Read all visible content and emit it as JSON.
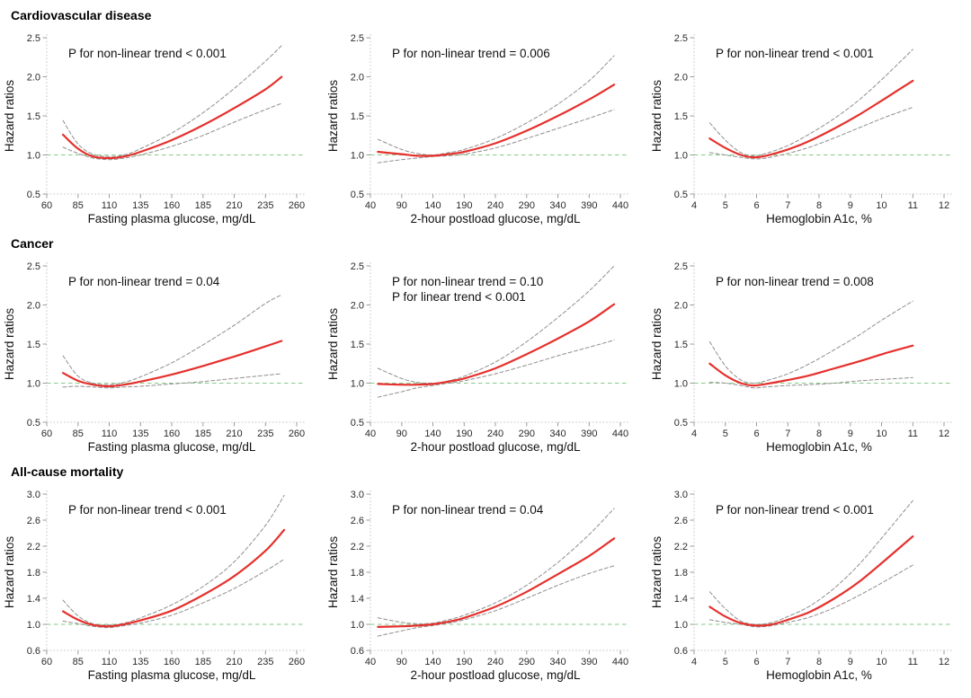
{
  "page": {
    "background": "#ffffff"
  },
  "colors": {
    "estimate_red": "#e5302c",
    "ci_gray": "#8e8e8e",
    "reference_green": "#86ca86",
    "axis_line": "#c6c6c6",
    "tick_mark": "#9b9b9b",
    "text": "#111111"
  },
  "rows": [
    {
      "title": "Cardiovascular disease"
    },
    {
      "title": "Cancer"
    },
    {
      "title": "All-cause mortality"
    }
  ],
  "chart_data": [
    {
      "type": "line",
      "outcome": "Cardiovascular disease",
      "xlabel": "Fasting plasma glucose, mg/dL",
      "ylabel": "Hazard ratios",
      "xlim": [
        60,
        260
      ],
      "xticks": [
        60,
        85,
        110,
        135,
        160,
        185,
        210,
        235,
        260
      ],
      "ylim": [
        0.5,
        2.5
      ],
      "yticks": [
        0.5,
        1.0,
        1.5,
        2.0,
        2.5
      ],
      "annotations": [
        "P for non-linear trend < 0.001"
      ],
      "reference_line_y": 1.0,
      "grid": false,
      "legend": "none",
      "x": [
        73,
        85,
        97,
        110,
        122,
        135,
        160,
        185,
        210,
        235,
        248
      ],
      "series": [
        {
          "name": "Hazard ratio",
          "role": "estimate",
          "color": "#e5302c",
          "style": "solid",
          "y": [
            1.26,
            1.08,
            0.98,
            0.96,
            0.98,
            1.04,
            1.19,
            1.38,
            1.6,
            1.84,
            2.0
          ]
        },
        {
          "name": "Upper 95% CI",
          "role": "ci",
          "color": "#8e8e8e",
          "style": "dashed",
          "y": [
            1.44,
            1.14,
            1.01,
            0.98,
            1.0,
            1.08,
            1.28,
            1.54,
            1.85,
            2.2,
            2.4
          ]
        },
        {
          "name": "Lower 95% CI",
          "role": "ci",
          "color": "#8e8e8e",
          "style": "dashed",
          "y": [
            1.1,
            1.02,
            0.96,
            0.94,
            0.96,
            1.0,
            1.11,
            1.25,
            1.42,
            1.58,
            1.66
          ]
        }
      ]
    },
    {
      "type": "line",
      "outcome": "Cardiovascular disease",
      "xlabel": "2-hour postload glucose, mg/dL",
      "ylabel": "Hazard ratios",
      "xlim": [
        40,
        440
      ],
      "xticks": [
        40,
        90,
        140,
        190,
        240,
        290,
        340,
        390,
        440
      ],
      "ylim": [
        0.5,
        2.5
      ],
      "yticks": [
        0.5,
        1.0,
        1.5,
        2.0,
        2.5
      ],
      "annotations": [
        "P for non-linear trend = 0.006"
      ],
      "reference_line_y": 1.0,
      "grid": false,
      "legend": "none",
      "x": [
        52,
        90,
        115,
        140,
        165,
        190,
        240,
        290,
        340,
        390,
        430
      ],
      "series": [
        {
          "name": "Hazard ratio",
          "role": "estimate",
          "color": "#e5302c",
          "style": "solid",
          "y": [
            1.04,
            1.01,
            0.99,
            0.99,
            1.01,
            1.04,
            1.15,
            1.31,
            1.5,
            1.71,
            1.9
          ]
        },
        {
          "name": "Upper 95% CI",
          "role": "ci",
          "color": "#8e8e8e",
          "style": "dashed",
          "y": [
            1.2,
            1.07,
            1.02,
            1.0,
            1.03,
            1.07,
            1.21,
            1.41,
            1.65,
            1.95,
            2.27
          ]
        },
        {
          "name": "Lower 95% CI",
          "role": "ci",
          "color": "#8e8e8e",
          "style": "dashed",
          "y": [
            0.9,
            0.94,
            0.96,
            0.98,
            0.99,
            1.01,
            1.09,
            1.21,
            1.34,
            1.47,
            1.58
          ]
        }
      ]
    },
    {
      "type": "line",
      "outcome": "Cardiovascular disease",
      "xlabel": "Hemoglobin A1c, %",
      "ylabel": "Hazard ratios",
      "xlim": [
        4,
        12
      ],
      "xticks": [
        4,
        5,
        6,
        7,
        8,
        9,
        10,
        11,
        12
      ],
      "ylim": [
        0.5,
        2.5
      ],
      "yticks": [
        0.5,
        1.0,
        1.5,
        2.0,
        2.5
      ],
      "annotations": [
        "P for non-linear trend < 0.001"
      ],
      "reference_line_y": 1.0,
      "grid": false,
      "legend": "none",
      "x": [
        4.5,
        5,
        5.5,
        5.9,
        6.3,
        7,
        7.7,
        8.5,
        9.3,
        10.1,
        11
      ],
      "series": [
        {
          "name": "Hazard ratio",
          "role": "estimate",
          "color": "#e5302c",
          "style": "solid",
          "y": [
            1.21,
            1.09,
            1.0,
            0.97,
            0.99,
            1.07,
            1.18,
            1.34,
            1.52,
            1.72,
            1.95
          ]
        },
        {
          "name": "Upper 95% CI",
          "role": "ci",
          "color": "#8e8e8e",
          "style": "dashed",
          "y": [
            1.41,
            1.19,
            1.03,
            0.99,
            1.02,
            1.12,
            1.27,
            1.47,
            1.71,
            2.0,
            2.35
          ]
        },
        {
          "name": "Lower 95% CI",
          "role": "ci",
          "color": "#8e8e8e",
          "style": "dashed",
          "y": [
            1.03,
            1.0,
            0.97,
            0.95,
            0.96,
            1.02,
            1.1,
            1.22,
            1.35,
            1.48,
            1.61
          ]
        }
      ]
    },
    {
      "type": "line",
      "outcome": "Cancer",
      "xlabel": "Fasting plasma glucose, mg/dL",
      "ylabel": "Hazard ratios",
      "xlim": [
        60,
        260
      ],
      "xticks": [
        60,
        85,
        110,
        135,
        160,
        185,
        210,
        235,
        260
      ],
      "ylim": [
        0.5,
        2.5
      ],
      "yticks": [
        0.5,
        1.0,
        1.5,
        2.0,
        2.5
      ],
      "annotations": [
        "P for non-linear trend = 0.04"
      ],
      "reference_line_y": 1.0,
      "grid": false,
      "legend": "none",
      "x": [
        73,
        85,
        97,
        110,
        122,
        135,
        160,
        185,
        210,
        235,
        248
      ],
      "series": [
        {
          "name": "Hazard ratio",
          "role": "estimate",
          "color": "#e5302c",
          "style": "solid",
          "y": [
            1.13,
            1.03,
            0.98,
            0.96,
            0.98,
            1.02,
            1.11,
            1.22,
            1.34,
            1.47,
            1.54
          ]
        },
        {
          "name": "Upper 95% CI",
          "role": "ci",
          "color": "#8e8e8e",
          "style": "dashed",
          "y": [
            1.35,
            1.09,
            1.0,
            0.98,
            1.01,
            1.08,
            1.26,
            1.49,
            1.74,
            2.02,
            2.13
          ]
        },
        {
          "name": "Lower 95% CI",
          "role": "ci",
          "color": "#8e8e8e",
          "style": "dashed",
          "y": [
            0.95,
            0.96,
            0.95,
            0.94,
            0.95,
            0.96,
            0.99,
            1.02,
            1.06,
            1.1,
            1.12
          ]
        }
      ]
    },
    {
      "type": "line",
      "outcome": "Cancer",
      "xlabel": "2-hour postload glucose, mg/dL",
      "ylabel": "Hazard ratios",
      "xlim": [
        40,
        440
      ],
      "xticks": [
        40,
        90,
        140,
        190,
        240,
        290,
        340,
        390,
        440
      ],
      "ylim": [
        0.5,
        2.5
      ],
      "yticks": [
        0.5,
        1.0,
        1.5,
        2.0,
        2.5
      ],
      "annotations": [
        "P for non-linear trend = 0.10",
        "P for linear trend < 0.001"
      ],
      "reference_line_y": 1.0,
      "grid": false,
      "legend": "none",
      "x": [
        52,
        90,
        115,
        140,
        165,
        190,
        240,
        290,
        340,
        390,
        430
      ],
      "series": [
        {
          "name": "Hazard ratio",
          "role": "estimate",
          "color": "#e5302c",
          "style": "solid",
          "y": [
            0.99,
            0.98,
            0.98,
            0.99,
            1.02,
            1.06,
            1.19,
            1.37,
            1.57,
            1.79,
            2.01
          ]
        },
        {
          "name": "Upper 95% CI",
          "role": "ci",
          "color": "#8e8e8e",
          "style": "dashed",
          "y": [
            1.19,
            1.06,
            1.01,
            1.0,
            1.03,
            1.09,
            1.27,
            1.53,
            1.84,
            2.18,
            2.5
          ]
        },
        {
          "name": "Lower 95% CI",
          "role": "ci",
          "color": "#8e8e8e",
          "style": "dashed",
          "y": [
            0.82,
            0.89,
            0.94,
            0.97,
            1.0,
            1.03,
            1.12,
            1.23,
            1.35,
            1.46,
            1.55
          ]
        }
      ]
    },
    {
      "type": "line",
      "outcome": "Cancer",
      "xlabel": "Hemoglobin A1c, %",
      "ylabel": "Hazard ratios",
      "xlim": [
        4,
        12
      ],
      "xticks": [
        4,
        5,
        6,
        7,
        8,
        9,
        10,
        11,
        12
      ],
      "ylim": [
        0.5,
        2.5
      ],
      "yticks": [
        0.5,
        1.0,
        1.5,
        2.0,
        2.5
      ],
      "annotations": [
        "P for non-linear trend = 0.008"
      ],
      "reference_line_y": 1.0,
      "grid": false,
      "legend": "none",
      "x": [
        4.5,
        5,
        5.5,
        5.9,
        6.3,
        7,
        7.7,
        8.5,
        9.3,
        10.1,
        11
      ],
      "series": [
        {
          "name": "Hazard ratio",
          "role": "estimate",
          "color": "#e5302c",
          "style": "solid",
          "y": [
            1.25,
            1.1,
            1.0,
            0.97,
            0.99,
            1.04,
            1.1,
            1.19,
            1.28,
            1.38,
            1.48
          ]
        },
        {
          "name": "Upper 95% CI",
          "role": "ci",
          "color": "#8e8e8e",
          "style": "dashed",
          "y": [
            1.53,
            1.22,
            1.04,
            1.0,
            1.03,
            1.12,
            1.25,
            1.43,
            1.62,
            1.83,
            2.05
          ]
        },
        {
          "name": "Lower 95% CI",
          "role": "ci",
          "color": "#8e8e8e",
          "style": "dashed",
          "y": [
            1.01,
            1.0,
            0.97,
            0.94,
            0.95,
            0.97,
            0.98,
            1.0,
            1.03,
            1.05,
            1.07
          ]
        }
      ]
    },
    {
      "type": "line",
      "outcome": "All-cause mortality",
      "xlabel": "Fasting plasma glucose, mg/dL",
      "ylabel": "Hazard ratios",
      "xlim": [
        60,
        260
      ],
      "xticks": [
        60,
        85,
        110,
        135,
        160,
        185,
        210,
        235,
        260
      ],
      "ylim": [
        0.6,
        3.0
      ],
      "yticks": [
        0.6,
        1.0,
        1.4,
        1.8,
        2.2,
        2.6,
        3.0
      ],
      "annotations": [
        "P for non-linear trend < 0.001"
      ],
      "reference_line_y": 1.0,
      "grid": false,
      "legend": "none",
      "x": [
        73,
        85,
        97,
        110,
        122,
        135,
        160,
        185,
        210,
        235,
        250
      ],
      "series": [
        {
          "name": "Hazard ratio",
          "role": "estimate",
          "color": "#e5302c",
          "style": "solid",
          "y": [
            1.2,
            1.07,
            0.99,
            0.97,
            1.0,
            1.06,
            1.21,
            1.45,
            1.74,
            2.13,
            2.45
          ]
        },
        {
          "name": "Upper 95% CI",
          "role": "ci",
          "color": "#8e8e8e",
          "style": "dashed",
          "y": [
            1.37,
            1.13,
            1.01,
            0.99,
            1.02,
            1.1,
            1.3,
            1.58,
            1.96,
            2.52,
            2.98
          ]
        },
        {
          "name": "Lower 95% CI",
          "role": "ci",
          "color": "#8e8e8e",
          "style": "dashed",
          "y": [
            1.05,
            1.01,
            0.97,
            0.95,
            0.98,
            1.02,
            1.14,
            1.33,
            1.55,
            1.82,
            2.0
          ]
        }
      ]
    },
    {
      "type": "line",
      "outcome": "All-cause mortality",
      "xlabel": "2-hour postload glucose, mg/dL",
      "ylabel": "Hazard ratios",
      "xlim": [
        40,
        440
      ],
      "xticks": [
        40,
        90,
        140,
        190,
        240,
        290,
        340,
        390,
        440
      ],
      "ylim": [
        0.6,
        3.0
      ],
      "yticks": [
        0.6,
        1.0,
        1.4,
        1.8,
        2.2,
        2.6,
        3.0
      ],
      "annotations": [
        "P for non-linear trend = 0.04"
      ],
      "reference_line_y": 1.0,
      "grid": false,
      "legend": "none",
      "x": [
        52,
        90,
        115,
        140,
        165,
        190,
        240,
        290,
        340,
        390,
        430
      ],
      "series": [
        {
          "name": "Hazard ratio",
          "role": "estimate",
          "color": "#e5302c",
          "style": "solid",
          "y": [
            0.96,
            0.97,
            0.98,
            1.0,
            1.04,
            1.1,
            1.27,
            1.5,
            1.77,
            2.05,
            2.32
          ]
        },
        {
          "name": "Upper 95% CI",
          "role": "ci",
          "color": "#8e8e8e",
          "style": "dashed",
          "y": [
            1.1,
            1.03,
            1.01,
            1.02,
            1.07,
            1.14,
            1.33,
            1.6,
            1.95,
            2.38,
            2.78
          ]
        },
        {
          "name": "Lower 95% CI",
          "role": "ci",
          "color": "#8e8e8e",
          "style": "dashed",
          "y": [
            0.82,
            0.9,
            0.95,
            0.98,
            1.02,
            1.07,
            1.21,
            1.4,
            1.6,
            1.78,
            1.9
          ]
        }
      ]
    },
    {
      "type": "line",
      "outcome": "All-cause mortality",
      "xlabel": "Hemoglobin A1c, %",
      "ylabel": "Hazard ratios",
      "xlim": [
        4,
        12
      ],
      "xticks": [
        4,
        5,
        6,
        7,
        8,
        9,
        10,
        11,
        12
      ],
      "ylim": [
        0.6,
        3.0
      ],
      "yticks": [
        0.6,
        1.0,
        1.4,
        1.8,
        2.2,
        2.6,
        3.0
      ],
      "annotations": [
        "P for non-linear trend < 0.001"
      ],
      "reference_line_y": 1.0,
      "grid": false,
      "legend": "none",
      "x": [
        4.5,
        5,
        5.5,
        6,
        6.5,
        7,
        7.7,
        8.5,
        9.3,
        10.1,
        11
      ],
      "series": [
        {
          "name": "Hazard ratio",
          "role": "estimate",
          "color": "#e5302c",
          "style": "solid",
          "y": [
            1.27,
            1.12,
            1.02,
            0.98,
            1.0,
            1.07,
            1.19,
            1.4,
            1.66,
            1.98,
            2.35
          ]
        },
        {
          "name": "Upper 95% CI",
          "role": "ci",
          "color": "#8e8e8e",
          "style": "dashed",
          "y": [
            1.5,
            1.24,
            1.05,
            1.0,
            1.03,
            1.12,
            1.28,
            1.56,
            1.93,
            2.38,
            2.9
          ]
        },
        {
          "name": "Lower 95% CI",
          "role": "ci",
          "color": "#8e8e8e",
          "style": "dashed",
          "y": [
            1.07,
            1.03,
            1.0,
            0.96,
            0.98,
            1.03,
            1.11,
            1.26,
            1.45,
            1.66,
            1.91
          ]
        }
      ]
    }
  ]
}
